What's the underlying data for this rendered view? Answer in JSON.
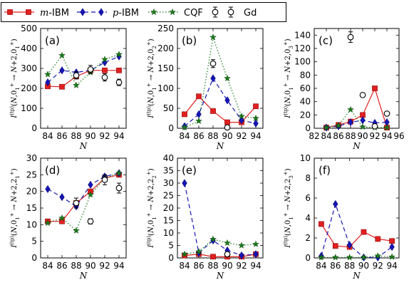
{
  "legend": {
    "entries": [
      {
        "label": "m-IBM",
        "label_prefix": "m",
        "label_suffix": "-IBM",
        "color": "#e02020",
        "marker": "square",
        "dash": "solid"
      },
      {
        "label": "p-IBM",
        "label_prefix": "p",
        "label_suffix": "-IBM",
        "color": "#1515b5",
        "marker": "diamond",
        "dash": "dashed"
      },
      {
        "label": "CQF",
        "label_prefix": "",
        "label_suffix": "CQF",
        "color": "#1a7a1a",
        "marker": "star",
        "dash": "dotted"
      },
      {
        "label": "Gd",
        "label_prefix": "",
        "label_suffix": "Gd",
        "color": "#000000",
        "marker": "circle-err",
        "dash": "none"
      }
    ]
  },
  "chart_data": [
    {
      "type": "line",
      "panel": "(a)",
      "ylabel": "I(tp)(N,01+ → N+2,01+)",
      "ylabel_final": "0",
      "ylabel_sub": "1",
      "xlabel": "N",
      "xlim": [
        83,
        95
      ],
      "ylim": [
        0,
        500
      ],
      "xticks": [
        84,
        86,
        88,
        90,
        92,
        94
      ],
      "yticks": [
        0,
        100,
        200,
        300,
        400,
        500
      ],
      "series": [
        {
          "name": "m-IBM",
          "x": [
            84,
            86,
            88,
            90,
            92,
            94
          ],
          "y": [
            210,
            208,
            260,
            290,
            290,
            290
          ]
        },
        {
          "name": "p-IBM",
          "x": [
            84,
            86,
            88,
            90,
            92,
            94
          ],
          "y": [
            230,
            290,
            280,
            290,
            330,
            360
          ]
        },
        {
          "name": "CQF",
          "x": [
            84,
            86,
            88,
            90,
            92,
            94
          ],
          "y": [
            270,
            365,
            215,
            280,
            345,
            370
          ]
        },
        {
          "name": "Gd",
          "x": [
            88,
            90,
            92,
            94
          ],
          "y": [
            265,
            295,
            255,
            230
          ],
          "err": [
            18,
            20,
            18,
            16
          ]
        }
      ]
    },
    {
      "type": "line",
      "panel": "(b)",
      "ylabel": "I(tp)(N,01+ → N+2,02+)",
      "ylabel_final": "0",
      "ylabel_sub": "2",
      "xlabel": "N",
      "xlim": [
        83,
        95
      ],
      "ylim": [
        0,
        250
      ],
      "xticks": [
        84,
        86,
        88,
        90,
        92,
        94
      ],
      "yticks": [
        0,
        50,
        100,
        150,
        200,
        250
      ],
      "series": [
        {
          "name": "m-IBM",
          "x": [
            84,
            86,
            88,
            90,
            92,
            94
          ],
          "y": [
            35,
            80,
            43,
            15,
            15,
            55
          ]
        },
        {
          "name": "p-IBM",
          "x": [
            84,
            86,
            88,
            90,
            92,
            94
          ],
          "y": [
            5,
            35,
            125,
            70,
            20,
            12
          ]
        },
        {
          "name": "CQF",
          "x": [
            84,
            86,
            88,
            90,
            92,
            94
          ],
          "y": [
            2,
            18,
            228,
            125,
            30,
            25
          ]
        },
        {
          "name": "Gd",
          "x": [
            88,
            90
          ],
          "y": [
            162,
            2
          ],
          "err": [
            10,
            3
          ]
        }
      ]
    },
    {
      "type": "line",
      "panel": "(c)",
      "ylabel": "I(tp)(N,01+ → N+2,03+)",
      "ylabel_final": "0",
      "ylabel_sub": "3",
      "xlabel": "N",
      "xlim": [
        82,
        96
      ],
      "ylim": [
        0,
        150
      ],
      "xticks": [
        82,
        84,
        86,
        88,
        90,
        92,
        94,
        96
      ],
      "yticks": [
        0,
        20,
        40,
        60,
        80,
        100,
        120,
        140
      ],
      "series": [
        {
          "name": "m-IBM",
          "x": [
            84,
            86,
            88,
            90,
            92,
            94
          ],
          "y": [
            1,
            5,
            10,
            20,
            60,
            1
          ]
        },
        {
          "name": "p-IBM",
          "x": [
            84,
            86,
            88,
            90,
            92,
            94
          ],
          "y": [
            1,
            3,
            9,
            12,
            8,
            9
          ]
        },
        {
          "name": "CQF",
          "x": [
            84,
            86,
            88,
            90,
            92,
            94
          ],
          "y": [
            1,
            4,
            28,
            2,
            1,
            1
          ]
        },
        {
          "name": "Gd",
          "x": [
            88,
            90,
            92,
            94
          ],
          "y": [
            137,
            50,
            3,
            22
          ],
          "err": [
            8,
            3,
            1,
            2
          ]
        }
      ]
    },
    {
      "type": "line",
      "panel": "(d)",
      "ylabel": "I(tp)(N,01+ → N+2,21+)",
      "ylabel_final": "2",
      "ylabel_sub": "1",
      "xlabel": "N",
      "xlim": [
        83,
        95
      ],
      "ylim": [
        0,
        30
      ],
      "xticks": [
        84,
        86,
        88,
        90,
        92,
        94
      ],
      "yticks": [
        0,
        5,
        10,
        15,
        20,
        25,
        30
      ],
      "series": [
        {
          "name": "m-IBM",
          "x": [
            84,
            86,
            88,
            90,
            92,
            94
          ],
          "y": [
            11,
            11,
            16.5,
            20,
            24,
            25
          ]
        },
        {
          "name": "p-IBM",
          "x": [
            84,
            86,
            88,
            90,
            92,
            94
          ],
          "y": [
            20.7,
            18.3,
            15.5,
            22,
            24.5,
            25.5
          ]
        },
        {
          "name": "CQF",
          "x": [
            84,
            86,
            88,
            90,
            92,
            94
          ],
          "y": [
            10.5,
            12,
            8.2,
            19,
            24,
            25.5
          ]
        },
        {
          "name": "Gd",
          "x": [
            88,
            90,
            92,
            94
          ],
          "y": [
            16.5,
            11,
            23.5,
            21
          ],
          "err": [
            1.5,
            0.8,
            1.5,
            1.5
          ]
        }
      ]
    },
    {
      "type": "line",
      "panel": "(e)",
      "ylabel": "I(tp)(N,01+ → N+2,22+)",
      "ylabel_final": "2",
      "ylabel_sub": "2",
      "xlabel": "N",
      "xlim": [
        83,
        95
      ],
      "ylim": [
        0,
        40
      ],
      "xticks": [
        84,
        86,
        88,
        90,
        92,
        94
      ],
      "yticks": [
        0,
        5,
        10,
        15,
        20,
        25,
        30,
        35,
        40
      ],
      "series": [
        {
          "name": "m-IBM",
          "x": [
            84,
            86,
            88,
            90,
            92,
            94
          ],
          "y": [
            1,
            1.5,
            0.5,
            0.5,
            0.5,
            1.5
          ]
        },
        {
          "name": "p-IBM",
          "x": [
            84,
            86,
            88,
            90,
            92,
            94
          ],
          "y": [
            30,
            2,
            7,
            3,
            1,
            1.5
          ]
        },
        {
          "name": "CQF",
          "x": [
            84,
            86,
            88,
            90,
            92,
            94
          ],
          "y": [
            1.5,
            2.5,
            7.5,
            6,
            5,
            5.5
          ]
        },
        {
          "name": "Gd",
          "x": [
            90
          ],
          "y": [
            1.5
          ],
          "err": [
            0.5
          ]
        }
      ]
    },
    {
      "type": "line",
      "panel": "(f)",
      "ylabel": "I(tp)(N,01+ → N+2,23+)",
      "ylabel_final": "2",
      "ylabel_sub": "3",
      "xlabel": "N",
      "xlim": [
        83,
        95
      ],
      "ylim": [
        0,
        10
      ],
      "xticks": [
        84,
        86,
        88,
        90,
        92,
        94
      ],
      "yticks": [
        0,
        2,
        4,
        6,
        8,
        10
      ],
      "series": [
        {
          "name": "m-IBM",
          "x": [
            84,
            86,
            88,
            90,
            92,
            94
          ],
          "y": [
            3.4,
            1.2,
            1.1,
            2.6,
            1.9,
            1.7
          ]
        },
        {
          "name": "p-IBM",
          "x": [
            84,
            86,
            88,
            90,
            92,
            94
          ],
          "y": [
            0.2,
            5.4,
            1.3,
            0.05,
            0.05,
            1.1
          ]
        },
        {
          "name": "CQF",
          "x": [
            84,
            86,
            88,
            90,
            92,
            94
          ],
          "y": [
            0.05,
            0.05,
            0.05,
            0.05,
            0.2,
            0.1
          ]
        }
      ]
    }
  ]
}
